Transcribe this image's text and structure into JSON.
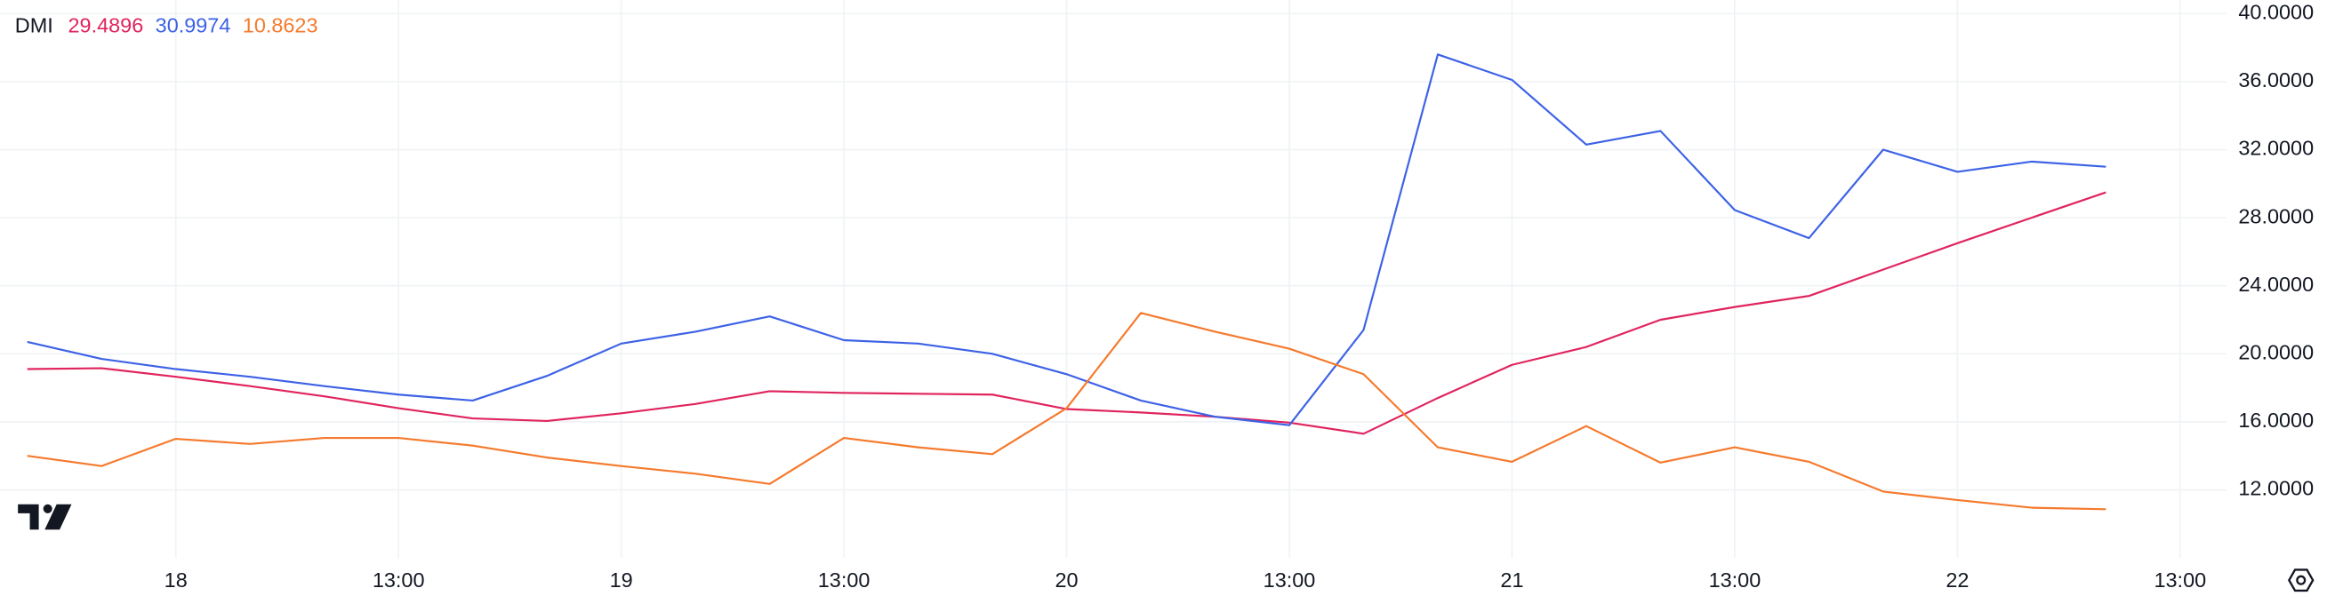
{
  "chart_data": {
    "type": "line",
    "title": "DMI",
    "x": [
      -8,
      -4,
      0,
      4,
      8,
      12,
      16,
      20,
      24,
      28,
      32,
      36,
      40,
      44,
      48,
      52,
      56,
      60,
      64,
      68,
      72,
      76,
      80,
      84,
      88,
      92,
      96,
      100,
      104
    ],
    "series": [
      {
        "color": "#e0245e",
        "values": [
          19.1,
          19.15,
          18.65,
          18.1,
          17.5,
          16.8,
          16.2,
          16.05,
          16.5,
          17.05,
          17.8,
          17.7,
          17.65,
          17.6,
          16.75,
          16.55,
          16.3,
          15.95,
          15.3,
          17.4,
          19.35,
          20.4,
          22.0,
          22.75,
          23.4,
          24.95,
          26.5,
          28.0,
          29.4896
        ]
      },
      {
        "color": "#3d62e6",
        "values": [
          20.7,
          19.7,
          19.1,
          18.65,
          18.1,
          17.6,
          17.25,
          18.7,
          20.6,
          21.3,
          22.2,
          20.8,
          20.6,
          20.0,
          18.8,
          17.25,
          16.3,
          15.8,
          21.4,
          37.6,
          36.1,
          32.3,
          33.1,
          28.45,
          26.8,
          32.0,
          30.7,
          31.3,
          30.9974
        ]
      },
      {
        "color": "#f57a2d",
        "values": [
          14.0,
          13.4,
          15.0,
          14.7,
          15.05,
          15.05,
          14.6,
          13.9,
          13.4,
          12.95,
          12.35,
          15.05,
          14.5,
          14.1,
          16.8,
          22.4,
          21.3,
          20.3,
          18.8,
          14.5,
          13.65,
          15.75,
          13.6,
          14.5,
          13.65,
          11.9,
          11.4,
          10.95,
          10.8623
        ]
      }
    ],
    "xlim": [
      -9.47,
      110.5
    ],
    "ylim": [
      8,
      40.8
    ],
    "xticks": [
      {
        "value": 0,
        "label": "18"
      },
      {
        "value": 12,
        "label": "13:00"
      },
      {
        "value": 24,
        "label": "19"
      },
      {
        "value": 36,
        "label": "13:00"
      },
      {
        "value": 48,
        "label": "20"
      },
      {
        "value": 60,
        "label": "13:00"
      },
      {
        "value": 72,
        "label": "21"
      },
      {
        "value": 84,
        "label": "13:00"
      },
      {
        "value": 96,
        "label": "22"
      },
      {
        "value": 108,
        "label": "13:00"
      }
    ],
    "yticks": [
      {
        "value": 12,
        "label": "12.0000"
      },
      {
        "value": 16,
        "label": "16.0000"
      },
      {
        "value": 20,
        "label": "20.0000"
      },
      {
        "value": 24,
        "label": "24.0000"
      },
      {
        "value": 28,
        "label": "28.0000"
      },
      {
        "value": 32,
        "label": "32.0000"
      },
      {
        "value": 36,
        "label": "36.0000"
      },
      {
        "value": 40,
        "label": "40.0000"
      }
    ],
    "grid": true
  }
}
